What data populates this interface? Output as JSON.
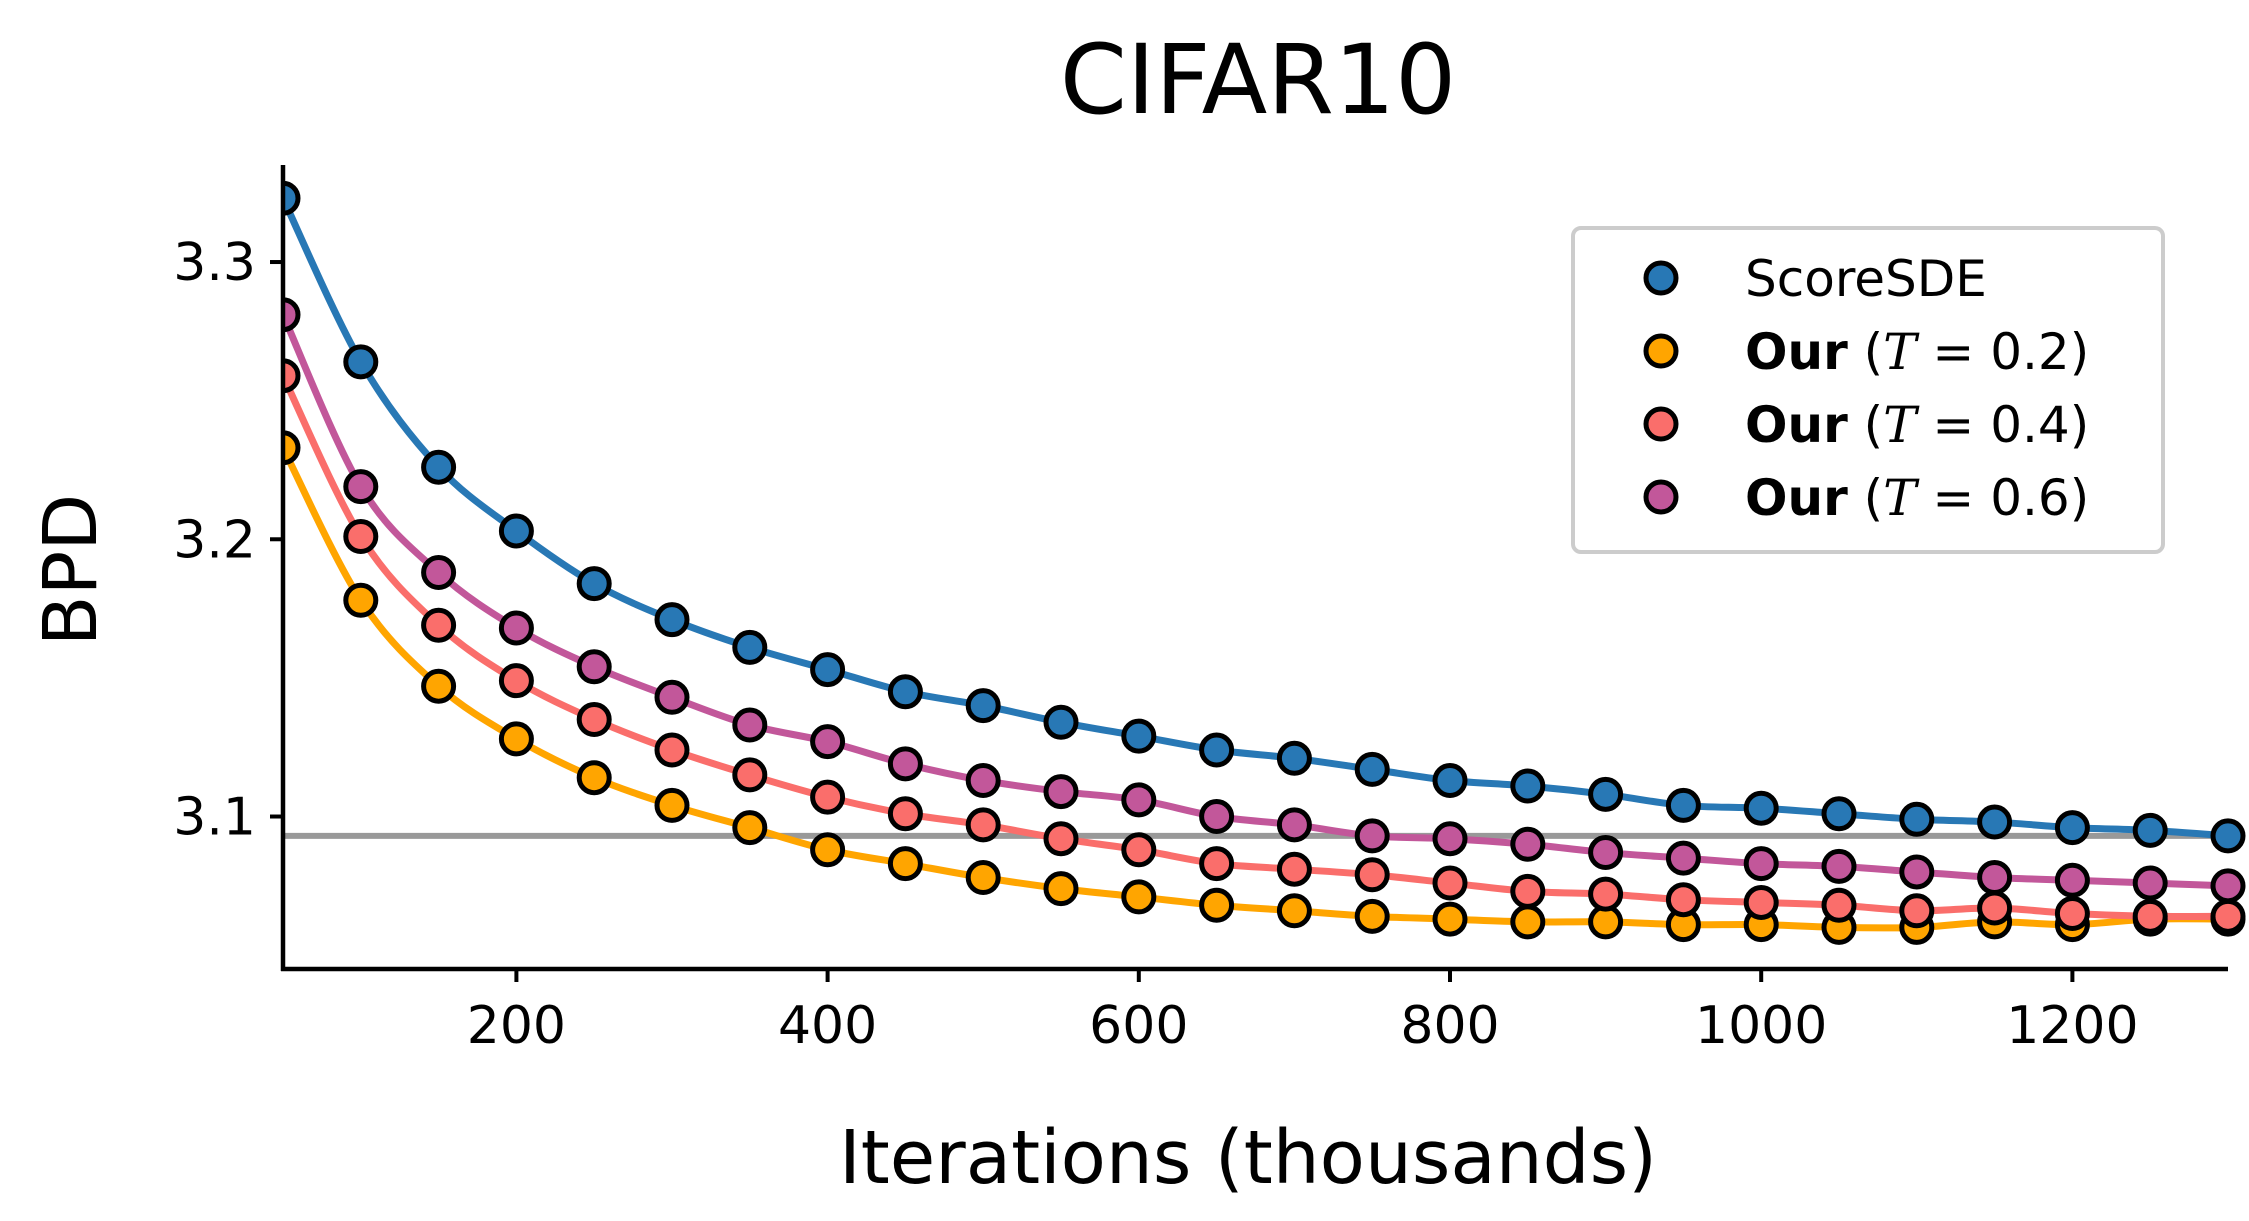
{
  "chart_data": {
    "type": "line",
    "title": "CIFAR10",
    "xlabel": "Iterations (thousands)",
    "ylabel": "BPD",
    "xlim": [
      50,
      1300
    ],
    "ylim": [
      3.045,
      3.335
    ],
    "xticks": [
      200,
      400,
      600,
      800,
      1000,
      1200
    ],
    "xtick_labels": [
      "200",
      "400",
      "600",
      "800",
      "1000",
      "1200"
    ],
    "yticks": [
      3.1,
      3.2,
      3.3
    ],
    "ytick_labels": [
      "3.1",
      "3.2",
      "3.3"
    ],
    "reference_line": {
      "y": 3.093,
      "color": "#999999"
    },
    "legend_position": "top-right",
    "x": [
      50,
      100,
      150,
      200,
      250,
      300,
      350,
      400,
      450,
      500,
      550,
      600,
      650,
      700,
      750,
      800,
      850,
      900,
      950,
      1000,
      1050,
      1100,
      1150,
      1200,
      1250,
      1300
    ],
    "series": [
      {
        "name": "ScoreSDE",
        "legend": {
          "bold": "",
          "pre": "ScoreSDE",
          "italic": "",
          "post": ""
        },
        "color": "#2878b5",
        "values": [
          3.323,
          3.264,
          3.226,
          3.203,
          3.184,
          3.171,
          3.161,
          3.153,
          3.145,
          3.14,
          3.134,
          3.129,
          3.124,
          3.121,
          3.117,
          3.113,
          3.111,
          3.108,
          3.104,
          3.103,
          3.101,
          3.099,
          3.098,
          3.096,
          3.095,
          3.093
        ]
      },
      {
        "name": "Our (T = 0.2)",
        "legend": {
          "bold": "Our",
          "pre": " (",
          "italic": "T",
          "post": " = 0.2)"
        },
        "color": "#ffa500",
        "values": [
          3.233,
          3.178,
          3.147,
          3.128,
          3.114,
          3.104,
          3.096,
          3.088,
          3.083,
          3.078,
          3.074,
          3.071,
          3.068,
          3.066,
          3.064,
          3.063,
          3.062,
          3.062,
          3.061,
          3.061,
          3.06,
          3.06,
          3.062,
          3.061,
          3.063,
          3.063
        ]
      },
      {
        "name": "Our (T = 0.4)",
        "legend": {
          "bold": "Our",
          "pre": " (",
          "italic": "T",
          "post": " = 0.4)"
        },
        "color": "#fa6e6b",
        "values": [
          3.259,
          3.201,
          3.169,
          3.149,
          3.135,
          3.124,
          3.115,
          3.107,
          3.101,
          3.097,
          3.092,
          3.088,
          3.083,
          3.081,
          3.079,
          3.076,
          3.073,
          3.072,
          3.07,
          3.069,
          3.068,
          3.066,
          3.067,
          3.065,
          3.064,
          3.064
        ]
      },
      {
        "name": "Our (T = 0.6)",
        "legend": {
          "bold": "Our",
          "pre": " (",
          "italic": "T",
          "post": " = 0.6)"
        },
        "color": "#c2579a",
        "values": [
          3.281,
          3.219,
          3.188,
          3.168,
          3.154,
          3.143,
          3.133,
          3.127,
          3.119,
          3.113,
          3.109,
          3.106,
          3.1,
          3.097,
          3.093,
          3.092,
          3.09,
          3.087,
          3.085,
          3.083,
          3.082,
          3.08,
          3.078,
          3.077,
          3.076,
          3.075
        ]
      }
    ]
  }
}
